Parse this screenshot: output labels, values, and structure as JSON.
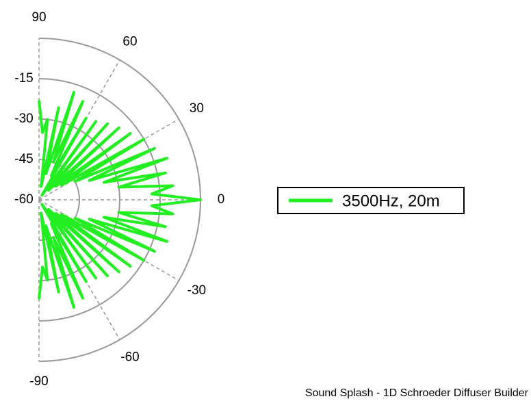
{
  "chart_data": {
    "type": "polar",
    "series": [
      {
        "name": "3500Hz, 20m",
        "color": "#22ee22",
        "x": [
          -90,
          -87,
          -84,
          -81,
          -78,
          -75,
          -72,
          -69,
          -66,
          -63,
          -60,
          -57,
          -54,
          -51,
          -48,
          -45,
          -42,
          -39,
          -36,
          -33,
          -30,
          -27,
          -24,
          -21,
          -18,
          -15,
          -12,
          -9,
          -6,
          -3,
          0,
          3,
          6,
          9,
          12,
          15,
          18,
          21,
          24,
          27,
          30,
          33,
          36,
          39,
          42,
          45,
          48,
          51,
          54,
          57,
          60,
          63,
          66,
          69,
          72,
          75,
          78,
          81,
          84,
          87,
          90
        ],
        "values": [
          -23,
          -35,
          -30,
          -55,
          -25,
          -50,
          -18,
          -45,
          -20,
          -50,
          -25,
          -58,
          -24,
          -55,
          -22,
          -55,
          -20,
          -52,
          -18,
          -50,
          -15,
          -45,
          -13,
          -40,
          -10,
          -35,
          -12,
          -30,
          -10,
          -18,
          0,
          -18,
          -10,
          -30,
          -12,
          -35,
          -10,
          -40,
          -13,
          -45,
          -15,
          -50,
          -18,
          -52,
          -20,
          -55,
          -22,
          -55,
          -24,
          -58,
          -25,
          -50,
          -20,
          -45,
          -18,
          -50,
          -25,
          -55,
          -30,
          -35,
          -23
        ]
      }
    ],
    "rlim": [
      -60,
      0
    ],
    "rticks": [
      -60,
      -45,
      -30,
      -15
    ],
    "thetaticks": [
      -90,
      -60,
      -30,
      0,
      30,
      60,
      90
    ],
    "footer": "Sound Splash - 1D Schroeder Diffuser Builder"
  }
}
